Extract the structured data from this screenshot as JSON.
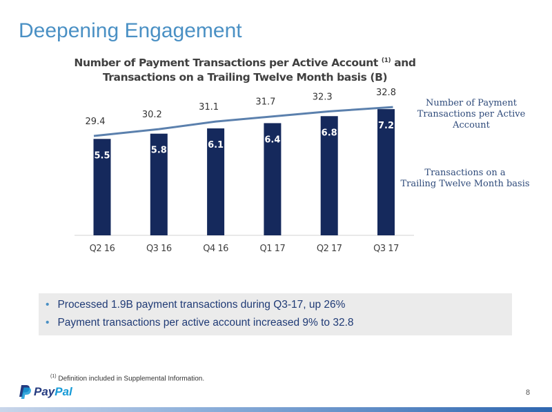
{
  "slide": {
    "title": "Deepening Engagement",
    "page_number": "8",
    "footnote_marker": "(1)",
    "footnote": "Definition included in Supplemental Information.",
    "logo_text_1": "Pay",
    "logo_text_2": "Pal"
  },
  "bullets": [
    "Processed 1.9B payment transactions during Q3-17, up 26%",
    "Payment transactions per active account increased 9% to 32.8"
  ],
  "chart_data": {
    "type": "bar",
    "title_line1": "Number of Payment Transactions per Active Account",
    "title_marker": "(1)",
    "title_line1_end": "and",
    "title_line2": "Transactions on a Trailing Twelve Month basis (B)",
    "categories": [
      "Q2 16",
      "Q3 16",
      "Q4 16",
      "Q1 17",
      "Q2 17",
      "Q3 17"
    ],
    "series": [
      {
        "name": "Transactions on a Trailing Twelve Month basis",
        "type": "bar",
        "values": [
          5.5,
          5.8,
          6.1,
          6.4,
          6.8,
          7.2
        ],
        "color": "#15295c"
      },
      {
        "name": "Number of Payment Transactions per Active Account",
        "type": "line",
        "values": [
          29.4,
          30.2,
          31.1,
          31.7,
          32.3,
          32.8
        ],
        "color": "#5b80ad"
      }
    ],
    "legend_line_1": "Number of Payment",
    "legend_line_2": "Transactions per Active Account",
    "legend_bar_1": "Transactions on a",
    "legend_bar_2": "Trailing Twelve Month basis",
    "grid": false,
    "legend_position": "right"
  }
}
